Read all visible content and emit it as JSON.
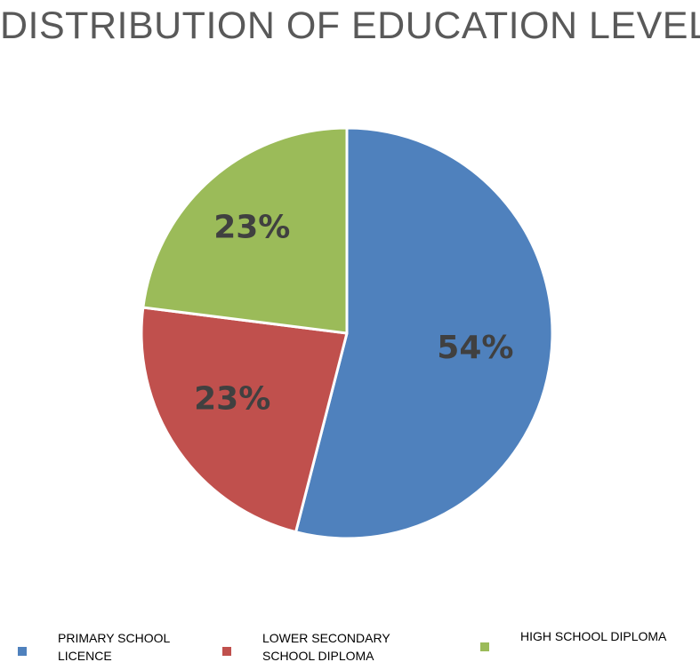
{
  "chart_data": {
    "type": "pie",
    "title": "DISTRIBUTION OF EDUCATION LEVEL",
    "slices": [
      {
        "name": "PRIMARY SCHOOL LICENCE",
        "value": 54,
        "label": "54%",
        "color": "#4f81bd"
      },
      {
        "name": "LOWER SECONDARY SCHOOL DIPLOMA",
        "value": 23,
        "label": "23%",
        "color": "#c0504d"
      },
      {
        "name": "HIGH SCHOOL DIPLOMA",
        "value": 23,
        "label": "23%",
        "color": "#9bbb59"
      }
    ],
    "start_angle": "12 o'clock",
    "direction": "clockwise",
    "legend": {
      "placement": "bottom",
      "items": [
        {
          "lines": [
            "PRIMARY SCHOOL",
            "LICENCE"
          ],
          "color": "#4f81bd"
        },
        {
          "lines": [
            "LOWER SECONDARY",
            "SCHOOL DIPLOMA"
          ],
          "color": "#c0504d"
        },
        {
          "lines": [
            "HIGH SCHOOL DIPLOMA"
          ],
          "color": "#9bbb59"
        }
      ]
    }
  }
}
